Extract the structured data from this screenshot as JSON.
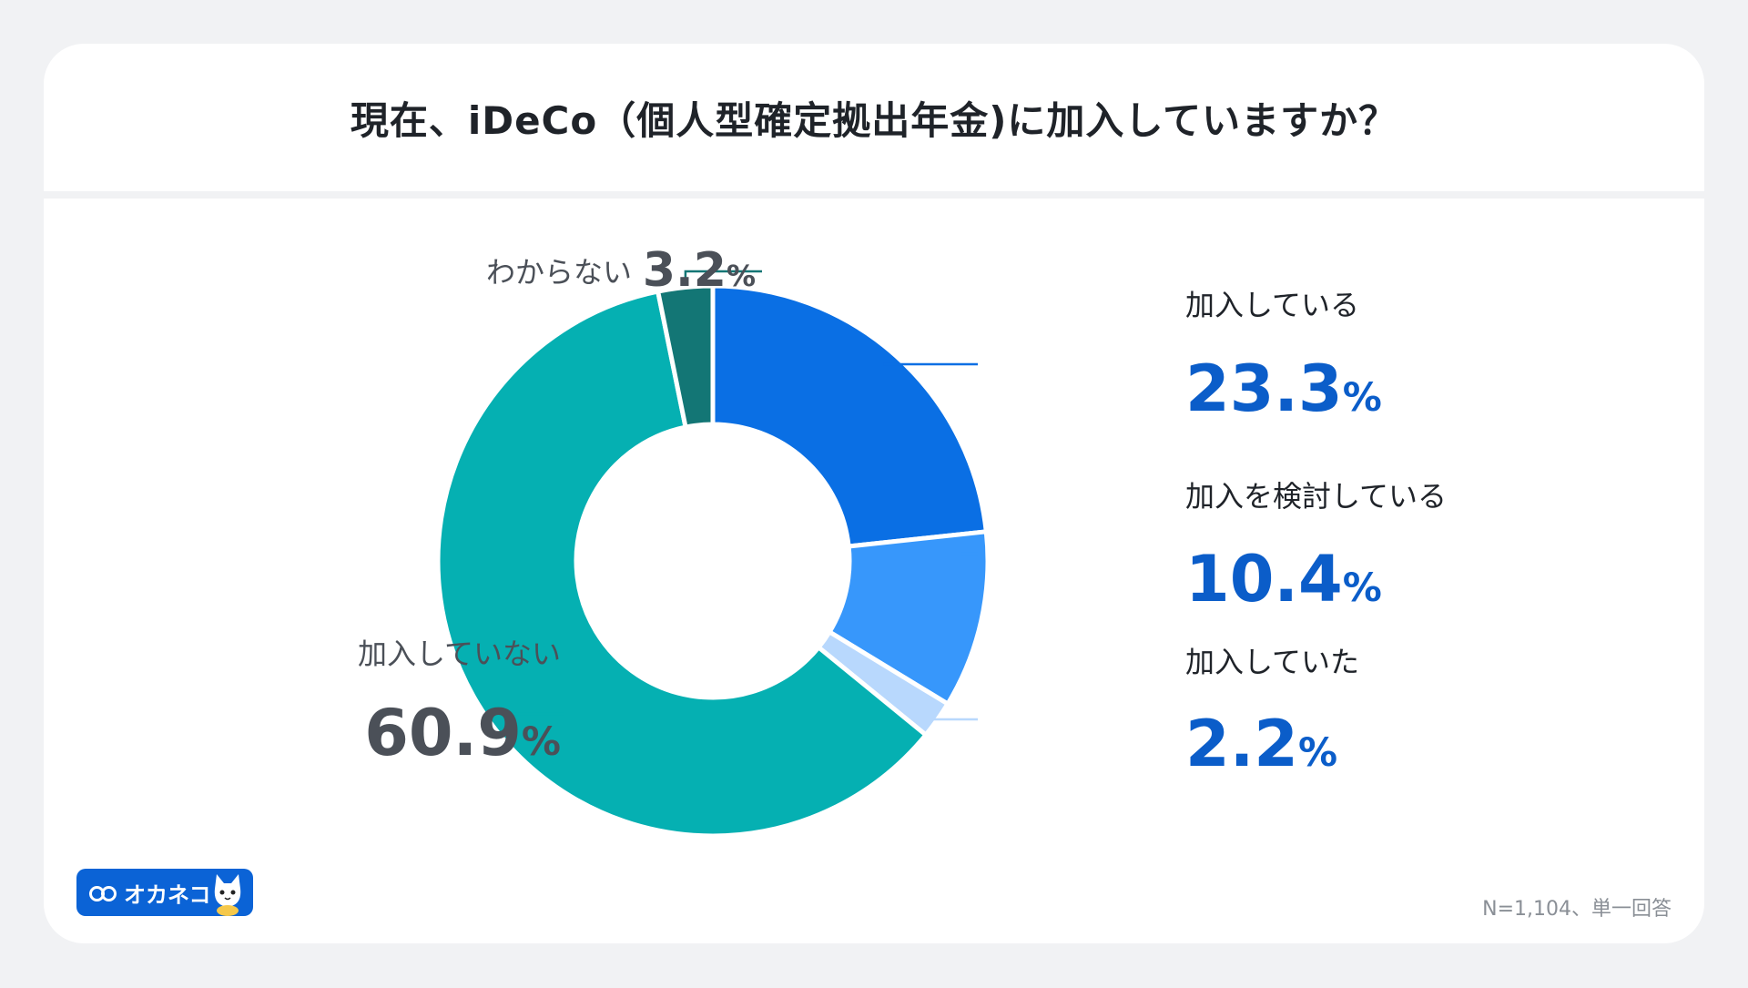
{
  "title": "現在、iDeCo（個人型確定拠出年金)に加入していますか？",
  "footnote": "N=1,104、単一回答",
  "logo": {
    "text": "オカネコ",
    "icon": "cat-mascot-icon"
  },
  "colors": {
    "joined": "#0a6fe4",
    "considering": "#3797fb",
    "was_joined": "#b8d8fd",
    "not_joined": "#05b0b2",
    "unknown": "#137675",
    "blue_text": "#0b5dc9",
    "gray_text": "#4b5058"
  },
  "chart_data": {
    "type": "pie",
    "title": "現在、iDeCo（個人型確定拠出年金)に加入していますか？",
    "unit": "%",
    "slices": [
      {
        "label": "加入している",
        "value": 23.3
      },
      {
        "label": "加入を検討している",
        "value": 10.4
      },
      {
        "label": "加入していた",
        "value": 2.2
      },
      {
        "label": "加入していない",
        "value": 60.9
      },
      {
        "label": "わからない",
        "value": 3.2
      }
    ]
  }
}
